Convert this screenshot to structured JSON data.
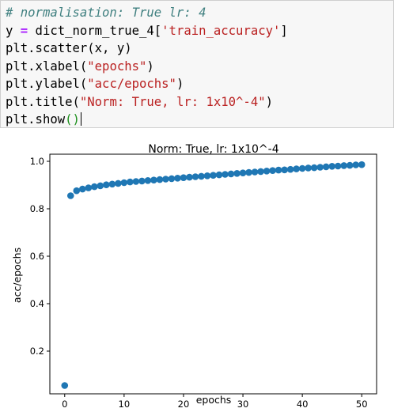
{
  "code_cell": {
    "lines": [
      {
        "parts": [
          {
            "cls": "cm",
            "text": "# normalisation: True lr: 4"
          }
        ]
      },
      {
        "parts": [
          {
            "cls": "",
            "text": "y "
          },
          {
            "cls": "eq",
            "text": "="
          },
          {
            "cls": "",
            "text": " dict_norm_true_4["
          },
          {
            "cls": "str",
            "text": "'train_accuracy'"
          },
          {
            "cls": "",
            "text": "]"
          }
        ]
      },
      {
        "parts": [
          {
            "cls": "",
            "text": "plt.scatter(x, y)"
          }
        ]
      },
      {
        "parts": [
          {
            "cls": "",
            "text": "plt.xlabel("
          },
          {
            "cls": "str",
            "text": "\"epochs\""
          },
          {
            "cls": "",
            "text": ")"
          }
        ]
      },
      {
        "parts": [
          {
            "cls": "",
            "text": "plt.ylabel("
          },
          {
            "cls": "str",
            "text": "\"acc/epochs\""
          },
          {
            "cls": "",
            "text": ")"
          }
        ]
      },
      {
        "parts": [
          {
            "cls": "",
            "text": "plt.title("
          },
          {
            "cls": "str",
            "text": "\"Norm: True, lr: 1x10^-4\""
          },
          {
            "cls": "",
            "text": ")"
          }
        ]
      },
      {
        "parts": [
          {
            "cls": "",
            "text": "plt.show"
          },
          {
            "cls": "paren-hl",
            "text": "()"
          }
        ],
        "cursor": true
      }
    ]
  },
  "chart_data": {
    "type": "scatter",
    "title": "Norm: True, lr: 1x10^-4",
    "xlabel": "epochs",
    "ylabel": "acc/epochs",
    "xlim": [
      -2.5,
      52.5
    ],
    "ylim": [
      0.02,
      1.03
    ],
    "xticks": [
      0,
      10,
      20,
      30,
      40,
      50
    ],
    "yticks": [
      0.2,
      0.4,
      0.6,
      0.8,
      1.0
    ],
    "ytick_labels": [
      "0.2",
      "0.4",
      "0.6",
      "0.8",
      "1.0"
    ],
    "grid": false,
    "marker_color": "#1f77b4",
    "x": [
      0,
      1,
      2,
      3,
      4,
      5,
      6,
      7,
      8,
      9,
      10,
      11,
      12,
      13,
      14,
      15,
      16,
      17,
      18,
      19,
      20,
      21,
      22,
      23,
      24,
      25,
      26,
      27,
      28,
      29,
      30,
      31,
      32,
      33,
      34,
      35,
      36,
      37,
      38,
      39,
      40,
      41,
      42,
      43,
      44,
      45,
      46,
      47,
      48,
      49,
      50
    ],
    "y": [
      0.055,
      0.855,
      0.876,
      0.883,
      0.888,
      0.893,
      0.897,
      0.901,
      0.904,
      0.907,
      0.91,
      0.913,
      0.915,
      0.917,
      0.919,
      0.921,
      0.923,
      0.925,
      0.927,
      0.929,
      0.931,
      0.933,
      0.935,
      0.937,
      0.939,
      0.941,
      0.943,
      0.945,
      0.947,
      0.949,
      0.951,
      0.953,
      0.955,
      0.957,
      0.959,
      0.961,
      0.963,
      0.964,
      0.966,
      0.968,
      0.97,
      0.972,
      0.973,
      0.975,
      0.977,
      0.979,
      0.98,
      0.982,
      0.983,
      0.985,
      0.986
    ]
  }
}
